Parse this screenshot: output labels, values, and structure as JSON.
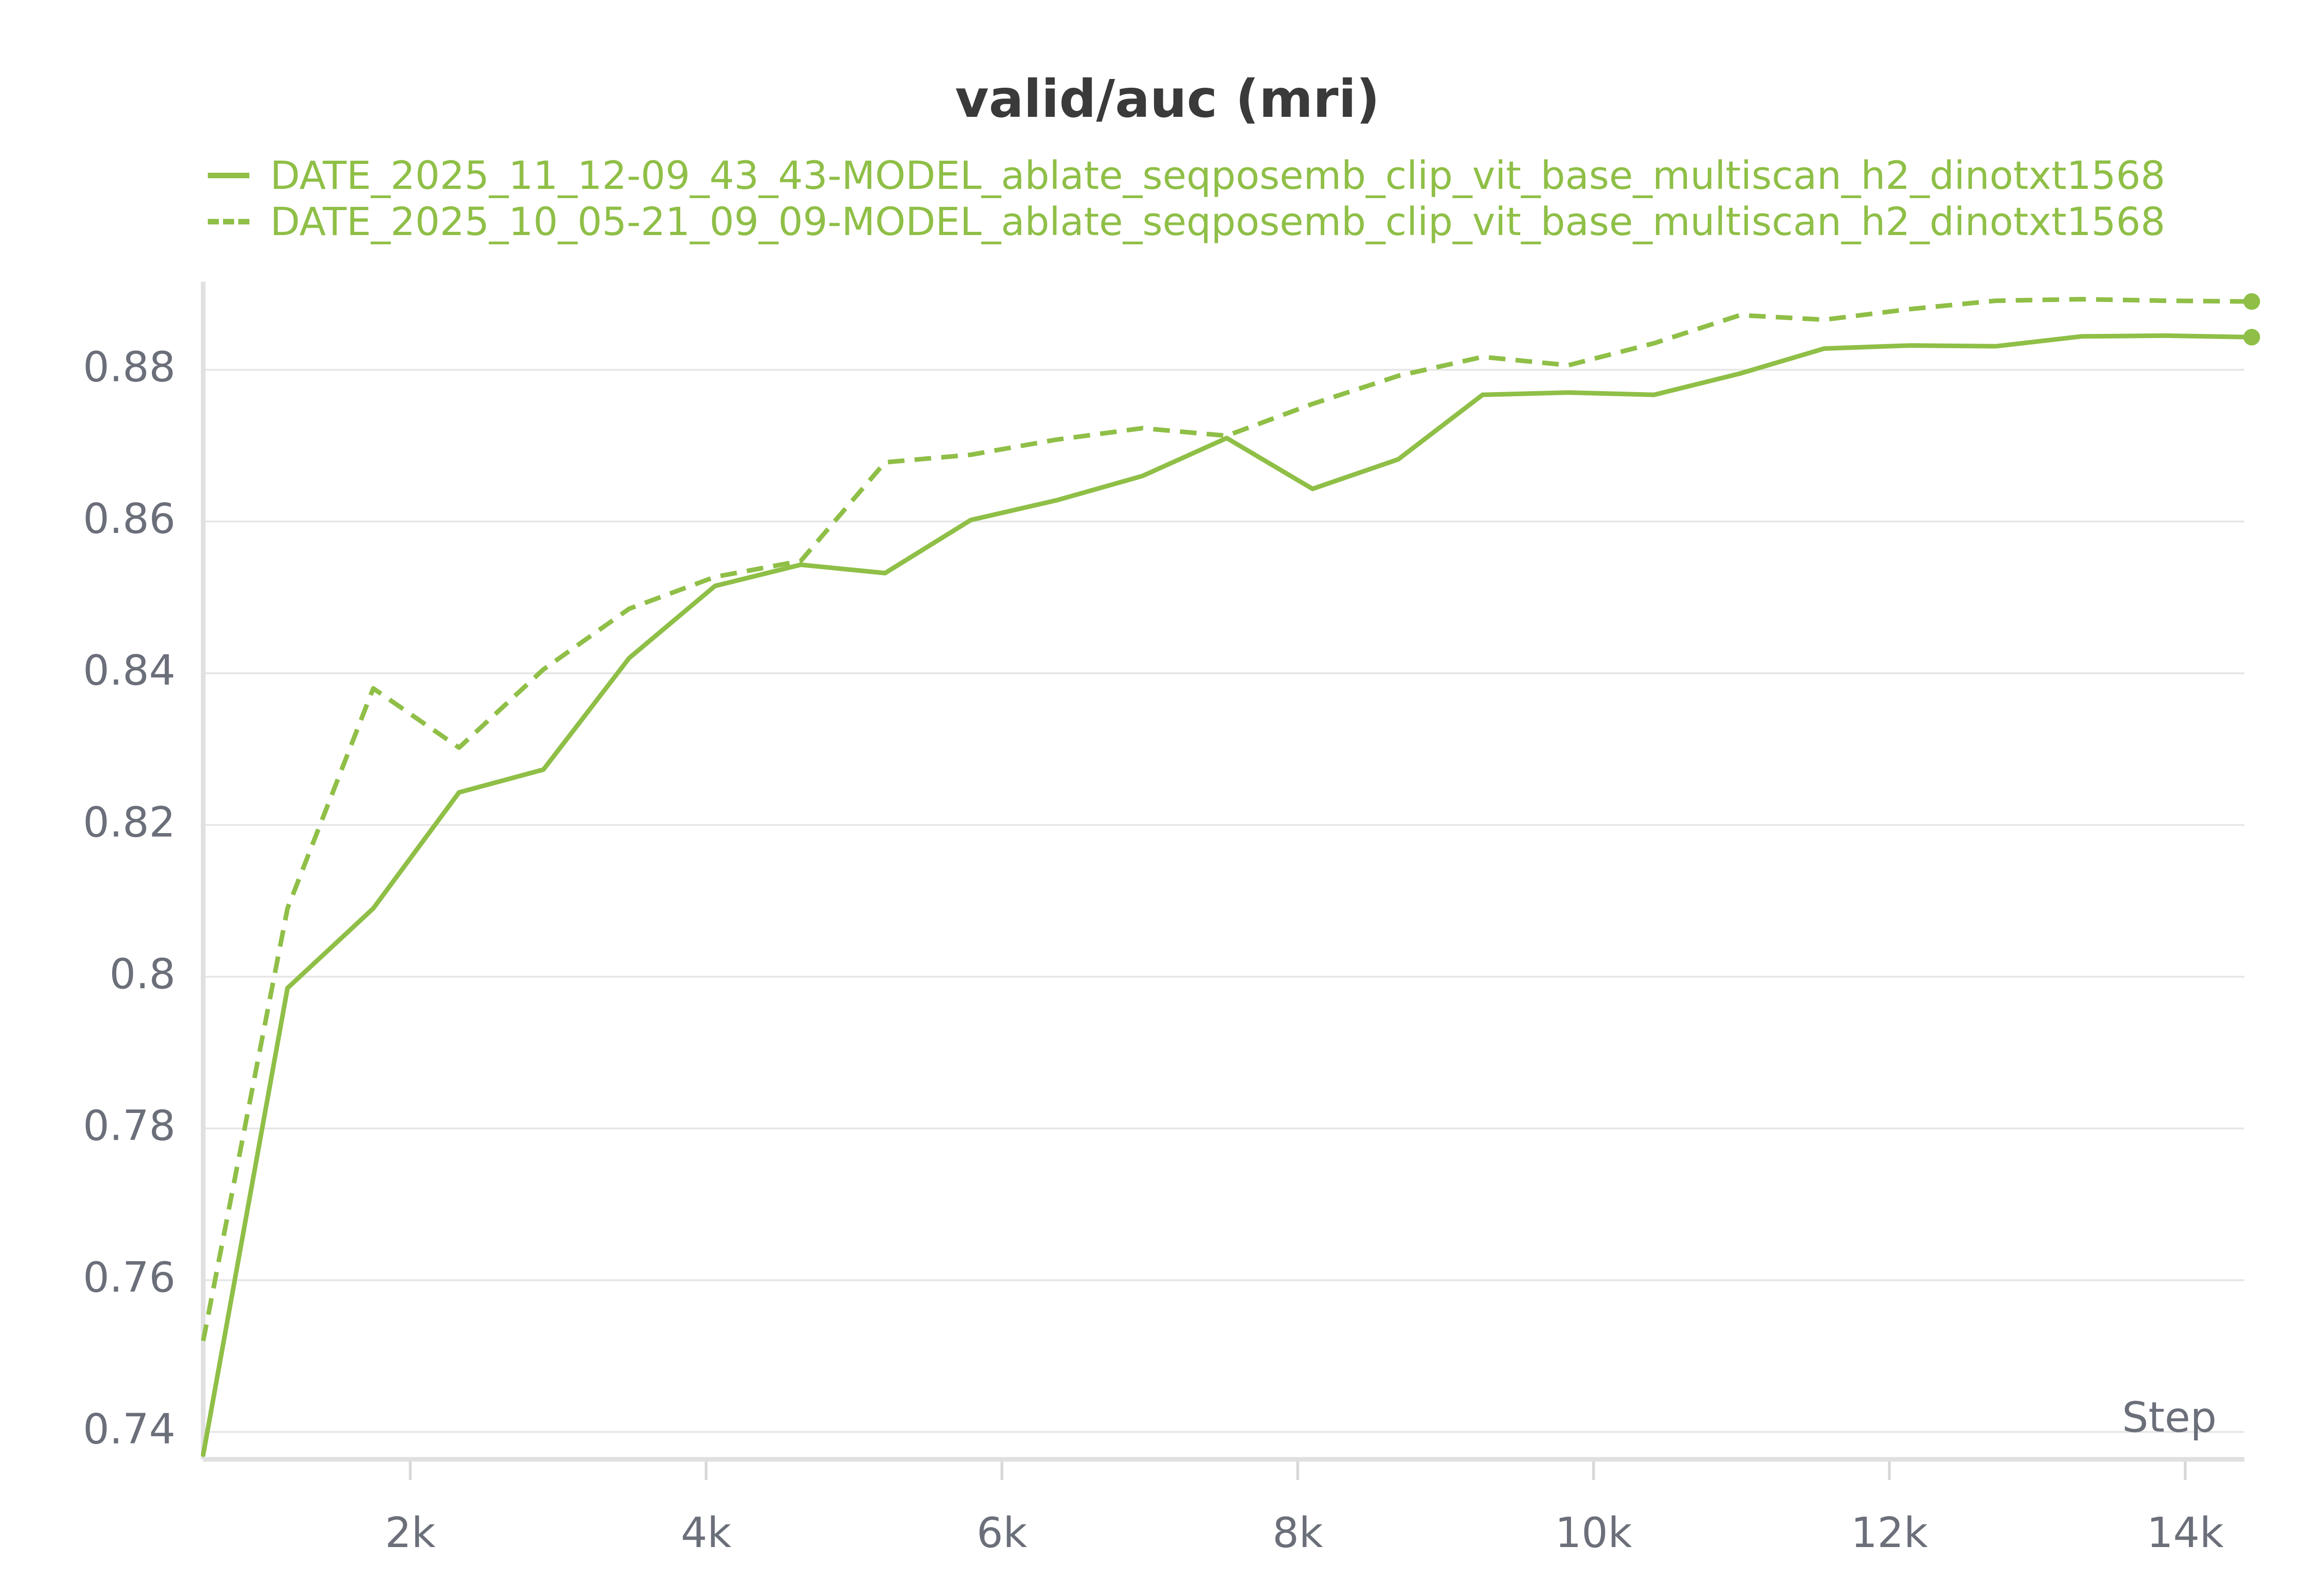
{
  "chart_data": {
    "type": "line",
    "title": "valid/auc (mri)",
    "xlabel": "Step",
    "ylabel": "",
    "xlim": [
      600,
      14400
    ],
    "ylim": [
      0.737,
      0.891
    ],
    "xticks": [
      2000,
      4000,
      6000,
      8000,
      10000,
      12000,
      14000
    ],
    "xtick_labels": [
      "2k",
      "4k",
      "6k",
      "8k",
      "10k",
      "12k",
      "14k"
    ],
    "yticks": [
      0.74,
      0.76,
      0.78,
      0.8,
      0.82,
      0.84,
      0.86,
      0.88
    ],
    "ytick_labels": [
      "0.74",
      "0.76",
      "0.78",
      "0.8",
      "0.82",
      "0.84",
      "0.86",
      "0.88"
    ],
    "grid": true,
    "legend_position": "top-left",
    "series": [
      {
        "name": "DATE_2025_11_12-09_43_43-MODEL_ablate_seqposemb_clip_vit_base_multiscan_h2_dinotxt1568",
        "style": "solid",
        "color": "#8fbf47",
        "x": [
          600,
          1170,
          1750,
          2330,
          2900,
          3480,
          4060,
          4640,
          5210,
          5790,
          6370,
          6950,
          7520,
          8100,
          8680,
          9250,
          9830,
          10410,
          10990,
          11560,
          12140,
          12720,
          13300,
          13870,
          14450
        ],
        "y": [
          0.737,
          0.7985,
          0.809,
          0.8243,
          0.8273,
          0.842,
          0.8515,
          0.8543,
          0.8532,
          0.8602,
          0.8628,
          0.866,
          0.871,
          0.8643,
          0.8682,
          0.8767,
          0.877,
          0.8767,
          0.8795,
          0.8828,
          0.8832,
          0.8831,
          0.8844,
          0.8845,
          0.8843
        ]
      },
      {
        "name": "DATE_2025_10_05-21_09_09-MODEL_ablate_seqposemb_clip_vit_base_multiscan_h2_dinotxt1568",
        "style": "dashed",
        "color": "#8fbf47",
        "x": [
          600,
          1170,
          1750,
          2330,
          2900,
          3480,
          4060,
          4640,
          5210,
          5790,
          6370,
          6950,
          7520,
          8100,
          8680,
          9250,
          9830,
          10410,
          10990,
          11560,
          12140,
          12720,
          13300,
          13870,
          14450
        ],
        "y": [
          0.752,
          0.809,
          0.838,
          0.8302,
          0.8405,
          0.8485,
          0.8527,
          0.8548,
          0.8678,
          0.8688,
          0.8708,
          0.8723,
          0.8713,
          0.8755,
          0.8792,
          0.8817,
          0.8806,
          0.8835,
          0.8872,
          0.8866,
          0.888,
          0.8891,
          0.8893,
          0.8891,
          0.889
        ]
      }
    ]
  }
}
